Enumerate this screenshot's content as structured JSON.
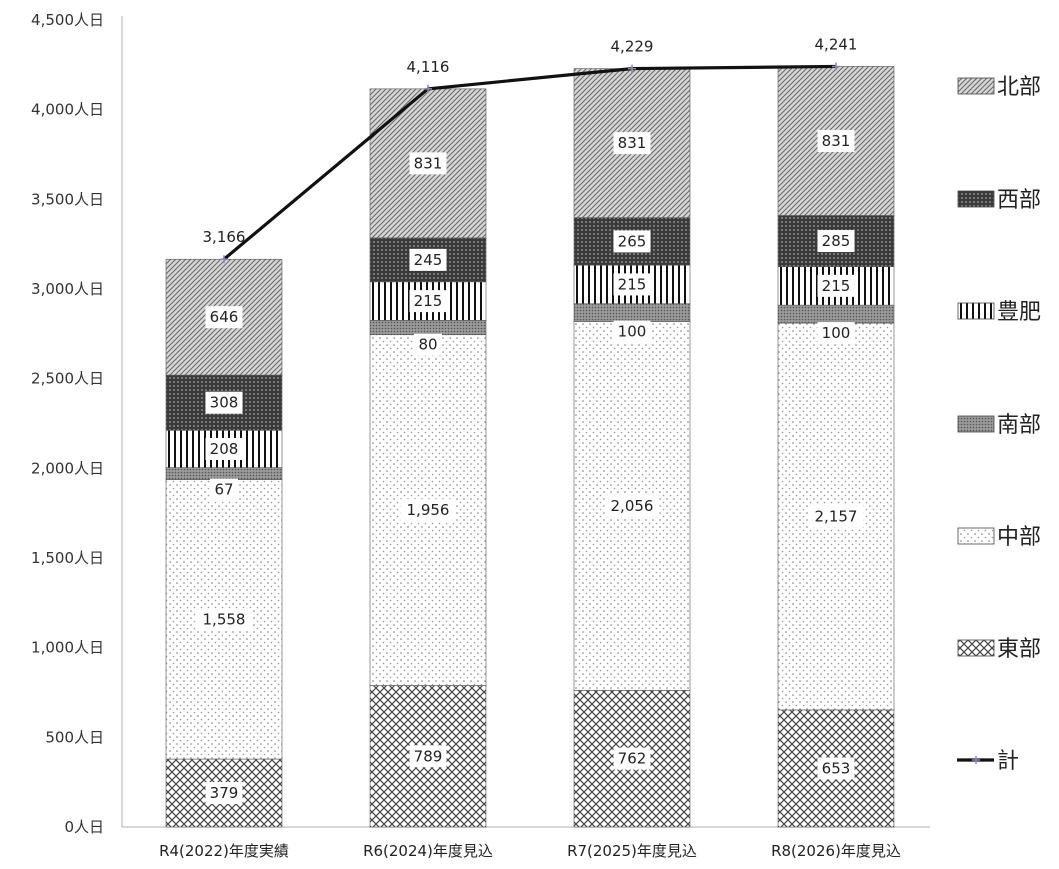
{
  "chart_data": {
    "type": "bar",
    "stacked": true,
    "title": "",
    "xlabel": "",
    "ylabel": "",
    "ylim": [
      0,
      4500
    ],
    "yticks": [
      0,
      500,
      1000,
      1500,
      2000,
      2500,
      3000,
      3500,
      4000,
      4500
    ],
    "ytick_labels": [
      "0人日",
      "500人日",
      "1,000人日",
      "1,500人日",
      "2,000人日",
      "2,500人日",
      "3,000人日",
      "3,500人日",
      "4,000人日",
      "4,500人日"
    ],
    "categories": [
      "R4(2022)年度実績",
      "R6(2024)年度見込",
      "R7(2025)年度見込",
      "R8(2026)年度見込"
    ],
    "series": [
      {
        "name": "東部",
        "pattern": "crosshatch",
        "values": [
          379,
          789,
          762,
          653
        ],
        "labels": [
          "379",
          "789",
          "762",
          "653"
        ]
      },
      {
        "name": "中部",
        "pattern": "dots",
        "values": [
          1558,
          1956,
          2056,
          2157
        ],
        "labels": [
          "1,558",
          "1,956",
          "2,056",
          "2,157"
        ]
      },
      {
        "name": "南部",
        "pattern": "fine-dots",
        "values": [
          67,
          80,
          100,
          100
        ],
        "labels": [
          "67",
          "80",
          "100",
          "100"
        ]
      },
      {
        "name": "豊肥",
        "pattern": "vertical-lines",
        "values": [
          208,
          215,
          215,
          215
        ],
        "labels": [
          "208",
          "215",
          "215",
          "215"
        ]
      },
      {
        "name": "西部",
        "pattern": "dark-dots",
        "values": [
          308,
          245,
          265,
          285
        ],
        "labels": [
          "308",
          "245",
          "265",
          "285"
        ]
      },
      {
        "name": "北部",
        "pattern": "diagonal",
        "values": [
          646,
          831,
          831,
          831
        ],
        "labels": [
          "646",
          "831",
          "831",
          "831"
        ]
      }
    ],
    "line_series": {
      "name": "計",
      "type": "line",
      "values": [
        3166,
        4116,
        4229,
        4241
      ],
      "labels": [
        "3,166",
        "4,116",
        "4,229",
        "4,241"
      ]
    },
    "legend": {
      "position": "right",
      "order": [
        "北部",
        "西部",
        "豊肥",
        "南部",
        "中部",
        "東部",
        "計"
      ]
    },
    "grid": false
  }
}
